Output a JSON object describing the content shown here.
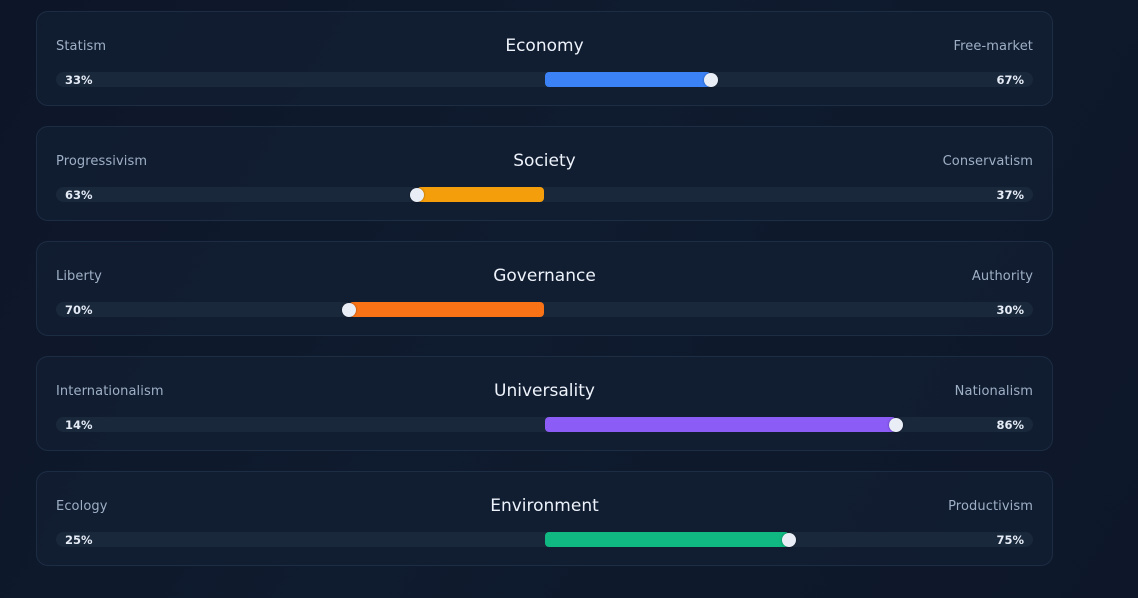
{
  "axes": [
    {
      "id": "economy",
      "title": "Economy",
      "left_label": "Statism",
      "right_label": "Free-market",
      "left_pct": "33%",
      "right_pct": "67%",
      "right_value": 67,
      "color": "#3b82f6"
    },
    {
      "id": "society",
      "title": "Society",
      "left_label": "Progressivism",
      "right_label": "Conservatism",
      "left_pct": "63%",
      "right_pct": "37%",
      "right_value": 37,
      "color": "#f59e0b"
    },
    {
      "id": "governance",
      "title": "Governance",
      "left_label": "Liberty",
      "right_label": "Authority",
      "left_pct": "70%",
      "right_pct": "30%",
      "right_value": 30,
      "color": "#f97316"
    },
    {
      "id": "universality",
      "title": "Universality",
      "left_label": "Internationalism",
      "right_label": "Nationalism",
      "left_pct": "14%",
      "right_pct": "86%",
      "right_value": 86,
      "color": "#8b5cf6"
    },
    {
      "id": "environment",
      "title": "Environment",
      "left_label": "Ecology",
      "right_label": "Productivism",
      "left_pct": "25%",
      "right_pct": "75%",
      "right_value": 75,
      "color": "#10b981"
    }
  ]
}
